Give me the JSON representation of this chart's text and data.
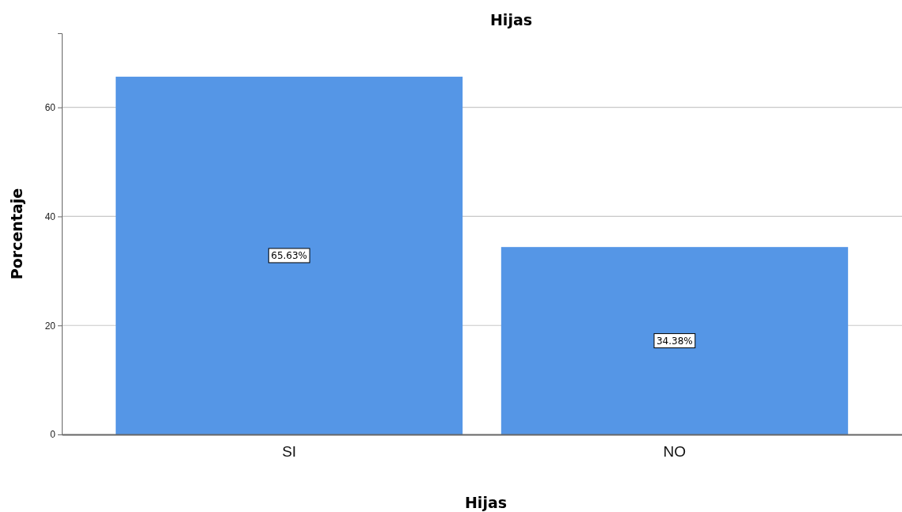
{
  "chart_data": {
    "type": "bar",
    "title": "Hijas",
    "xlabel": "Hijas",
    "ylabel": "Porcentaje",
    "categories": [
      "SI",
      "NO"
    ],
    "values": [
      65.63,
      34.38
    ],
    "color": "#5596e6",
    "value_labels": [
      "65.63%",
      "34.38%"
    ],
    "ylim": [
      0,
      73.6
    ],
    "yticks": [
      0,
      20,
      40,
      60
    ],
    "grid": "y"
  }
}
